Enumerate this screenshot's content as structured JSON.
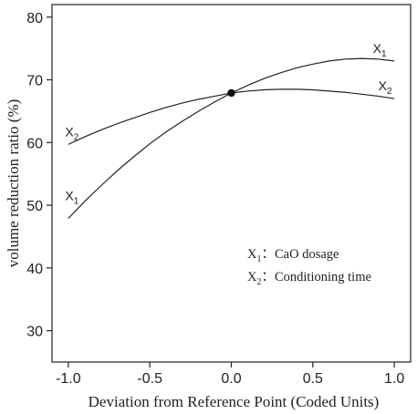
{
  "chart_data": {
    "type": "line",
    "title": "",
    "xlabel": "Deviation from Reference Point (Coded Units)",
    "ylabel": "volume reduction ratio (%)",
    "xlim": [
      -1.1,
      1.1
    ],
    "ylim": [
      25,
      82
    ],
    "x_ticks": [
      -1.0,
      -0.5,
      0.0,
      0.5,
      1.0
    ],
    "x_tick_labels": [
      "-1.0",
      "-0.5",
      "0.0",
      "0.5",
      "1.0"
    ],
    "y_ticks": [
      30,
      40,
      50,
      60,
      70,
      80
    ],
    "y_tick_labels": [
      "30",
      "40",
      "50",
      "60",
      "70",
      "80"
    ],
    "grid": false,
    "reference_point": {
      "x": 0.0,
      "y": 67.9
    },
    "series": [
      {
        "name": "X1",
        "label_base": "X",
        "label_sub": "1",
        "x": [
          -1.0,
          -0.9,
          -0.8,
          -0.7,
          -0.6,
          -0.5,
          -0.4,
          -0.3,
          -0.2,
          -0.1,
          0.0,
          0.1,
          0.2,
          0.3,
          0.4,
          0.5,
          0.6,
          0.7,
          0.8,
          0.9,
          1.0
        ],
        "y": [
          47.9,
          50.6,
          53.1,
          55.5,
          57.7,
          59.8,
          61.7,
          63.4,
          65.0,
          66.5,
          67.9,
          69.1,
          70.2,
          71.1,
          71.9,
          72.5,
          73.0,
          73.3,
          73.4,
          73.3,
          73.0
        ]
      },
      {
        "name": "X2",
        "label_base": "X",
        "label_sub": "2",
        "x": [
          -1.0,
          -0.9,
          -0.8,
          -0.7,
          -0.6,
          -0.5,
          -0.4,
          -0.3,
          -0.2,
          -0.1,
          0.0,
          0.1,
          0.2,
          0.3,
          0.4,
          0.5,
          0.6,
          0.7,
          0.8,
          0.9,
          1.0
        ],
        "y": [
          59.7,
          60.9,
          62.0,
          63.0,
          63.9,
          64.8,
          65.6,
          66.3,
          66.9,
          67.4,
          67.9,
          68.2,
          68.4,
          68.5,
          68.5,
          68.4,
          68.2,
          68.0,
          67.7,
          67.4,
          67.0
        ]
      }
    ],
    "legend": {
      "position": "lower-right",
      "entries": [
        {
          "base": "X",
          "sub": "1",
          "sep": "：",
          "text": "CaO dosage"
        },
        {
          "base": "X",
          "sub": "2",
          "sep": "：",
          "text": "Conditioning time"
        }
      ]
    }
  }
}
